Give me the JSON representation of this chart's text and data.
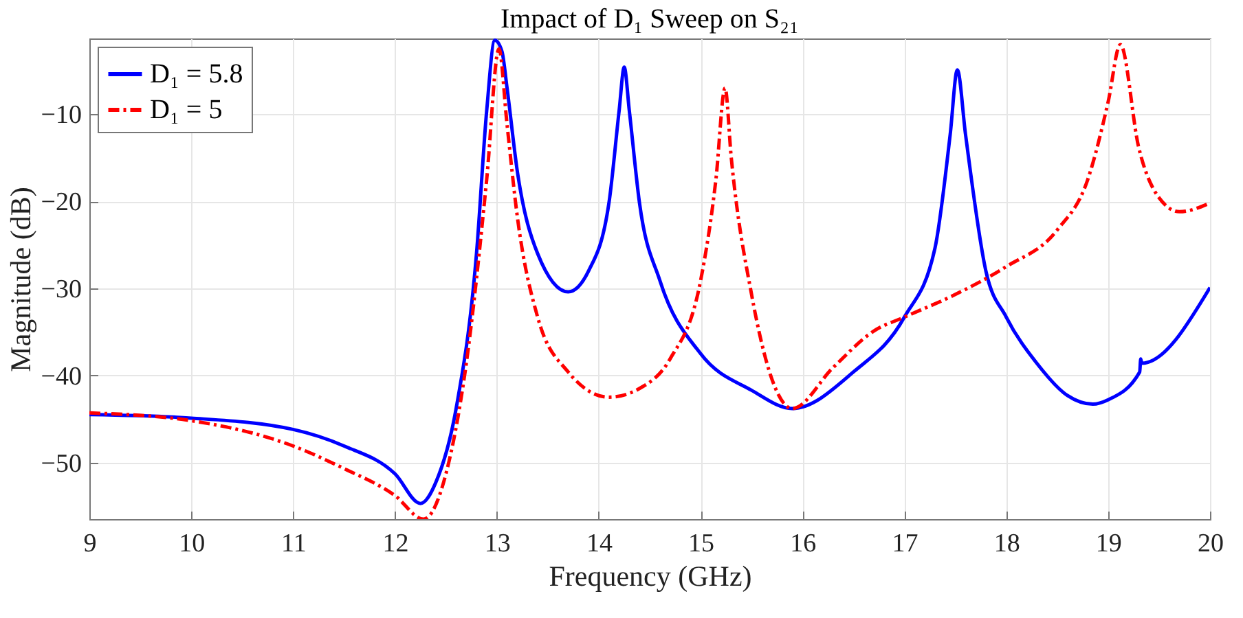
{
  "chart_data": {
    "type": "line",
    "title": "Impact of D₁ Sweep on S₂₁",
    "xlabel": "Frequency (GHz)",
    "ylabel": "Magnitude (dB)",
    "xlim": [
      9,
      20
    ],
    "ylim": [
      -56.5,
      -1.3
    ],
    "xticks": [
      9,
      10,
      11,
      12,
      13,
      14,
      15,
      16,
      17,
      18,
      19,
      20
    ],
    "yticks": [
      -50,
      -40,
      -30,
      -20,
      -10
    ],
    "grid": true,
    "legend": "top left",
    "marker": "none",
    "series": [
      {
        "name": "D₁ = 5.8",
        "color": "#0000ff",
        "line_style": "solid",
        "x": [
          9,
          10,
          11,
          11.5,
          12,
          12.25,
          12.4,
          12.6,
          12.8,
          12.9,
          12.98,
          13.05,
          13.1,
          13.2,
          13.4,
          13.7,
          13.9,
          14.1,
          14.2,
          14.25,
          14.3,
          14.4,
          14.6,
          15,
          15.5,
          15.9,
          16.5,
          17,
          17.3,
          17.45,
          17.52,
          17.6,
          17.8,
          18,
          18.3,
          18.6,
          18.85,
          19,
          19.31,
          19.32,
          19.33,
          20
        ],
        "values": [
          -44.5,
          -44.9,
          -46.2,
          -48.1,
          -51.3,
          -54.7,
          -52.3,
          -43.8,
          -26,
          -9.6,
          -1.5,
          -2.8,
          -7,
          -16.5,
          -26,
          -30.4,
          -28,
          -20.2,
          -9.6,
          -4.6,
          -9.6,
          -20.2,
          -29.1,
          -37.5,
          -41.7,
          -43.8,
          -39.6,
          -33.3,
          -25.4,
          -12.3,
          -4.9,
          -12.3,
          -28,
          -33.3,
          -38.6,
          -42.3,
          -43.3,
          -42.8,
          -39.6,
          -38.1,
          -38.6,
          -29.9
        ]
      },
      {
        "name": "D₁ = 5",
        "color": "#ff0000",
        "line_style": "dashed",
        "x": [
          9,
          10,
          11,
          11.5,
          12,
          12.28,
          12.5,
          12.7,
          12.9,
          13.02,
          13.1,
          13.2,
          13.4,
          13.7,
          14.1,
          14.4,
          14.7,
          15,
          15.15,
          15.24,
          15.3,
          15.5,
          15.9,
          16.3,
          16.7,
          17,
          17.5,
          18,
          18.5,
          18.8,
          19,
          19.12,
          19.3,
          19.5,
          19.7,
          20
        ],
        "values": [
          -44.3,
          -45.2,
          -48.1,
          -50.7,
          -53.8,
          -56.5,
          -51.3,
          -38.6,
          -17.5,
          -2.5,
          -11.2,
          -21.7,
          -33.3,
          -39.6,
          -42.5,
          -41.5,
          -38.1,
          -29.1,
          -17.5,
          -7,
          -14.9,
          -30.7,
          -43.8,
          -39.1,
          -34.9,
          -33.3,
          -30.7,
          -27.5,
          -23.3,
          -17.5,
          -8.6,
          -2,
          -13.8,
          -19.6,
          -21.2,
          -20.2
        ]
      }
    ]
  }
}
